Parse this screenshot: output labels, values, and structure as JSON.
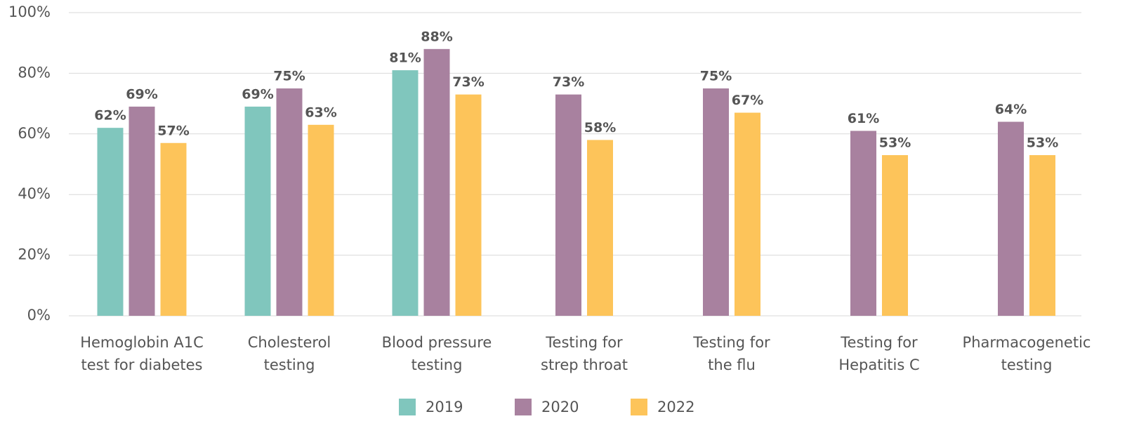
{
  "chart_data": {
    "type": "bar",
    "categories": [
      "Hemoglobin A1C\ntest for diabetes",
      "Cholesterol\ntesting",
      "Blood pressure\ntesting",
      "Testing for\nstrep throat",
      "Testing for\nthe flu",
      "Testing for\nHepatitis C",
      "Pharmacogenetic\ntesting"
    ],
    "series": [
      {
        "name": "2019",
        "color": "#80c6bd",
        "values": [
          62,
          69,
          81,
          null,
          null,
          null,
          null
        ],
        "value_labels": [
          "62%",
          "69%",
          "81%",
          null,
          null,
          null,
          null
        ]
      },
      {
        "name": "2020",
        "color": "#a8819f",
        "values": [
          69,
          75,
          88,
          73,
          75,
          61,
          64
        ],
        "value_labels": [
          "69%",
          "75%",
          "88%",
          "73%",
          "75%",
          "61%",
          "64%"
        ]
      },
      {
        "name": "2022",
        "color": "#fdc45a",
        "values": [
          57,
          63,
          73,
          58,
          67,
          53,
          53
        ],
        "value_labels": [
          "57%",
          "63%",
          "73%",
          "58%",
          "67%",
          "53%",
          "53%"
        ]
      }
    ],
    "ylim": [
      0,
      100
    ],
    "yticks": [
      {
        "value": 0,
        "label": "0%"
      },
      {
        "value": 20,
        "label": "20%"
      },
      {
        "value": 40,
        "label": "40%"
      },
      {
        "value": 60,
        "label": "60%"
      },
      {
        "value": 80,
        "label": "80%"
      },
      {
        "value": 100,
        "label": "100%"
      }
    ],
    "grid": true,
    "legend": "bottom"
  }
}
